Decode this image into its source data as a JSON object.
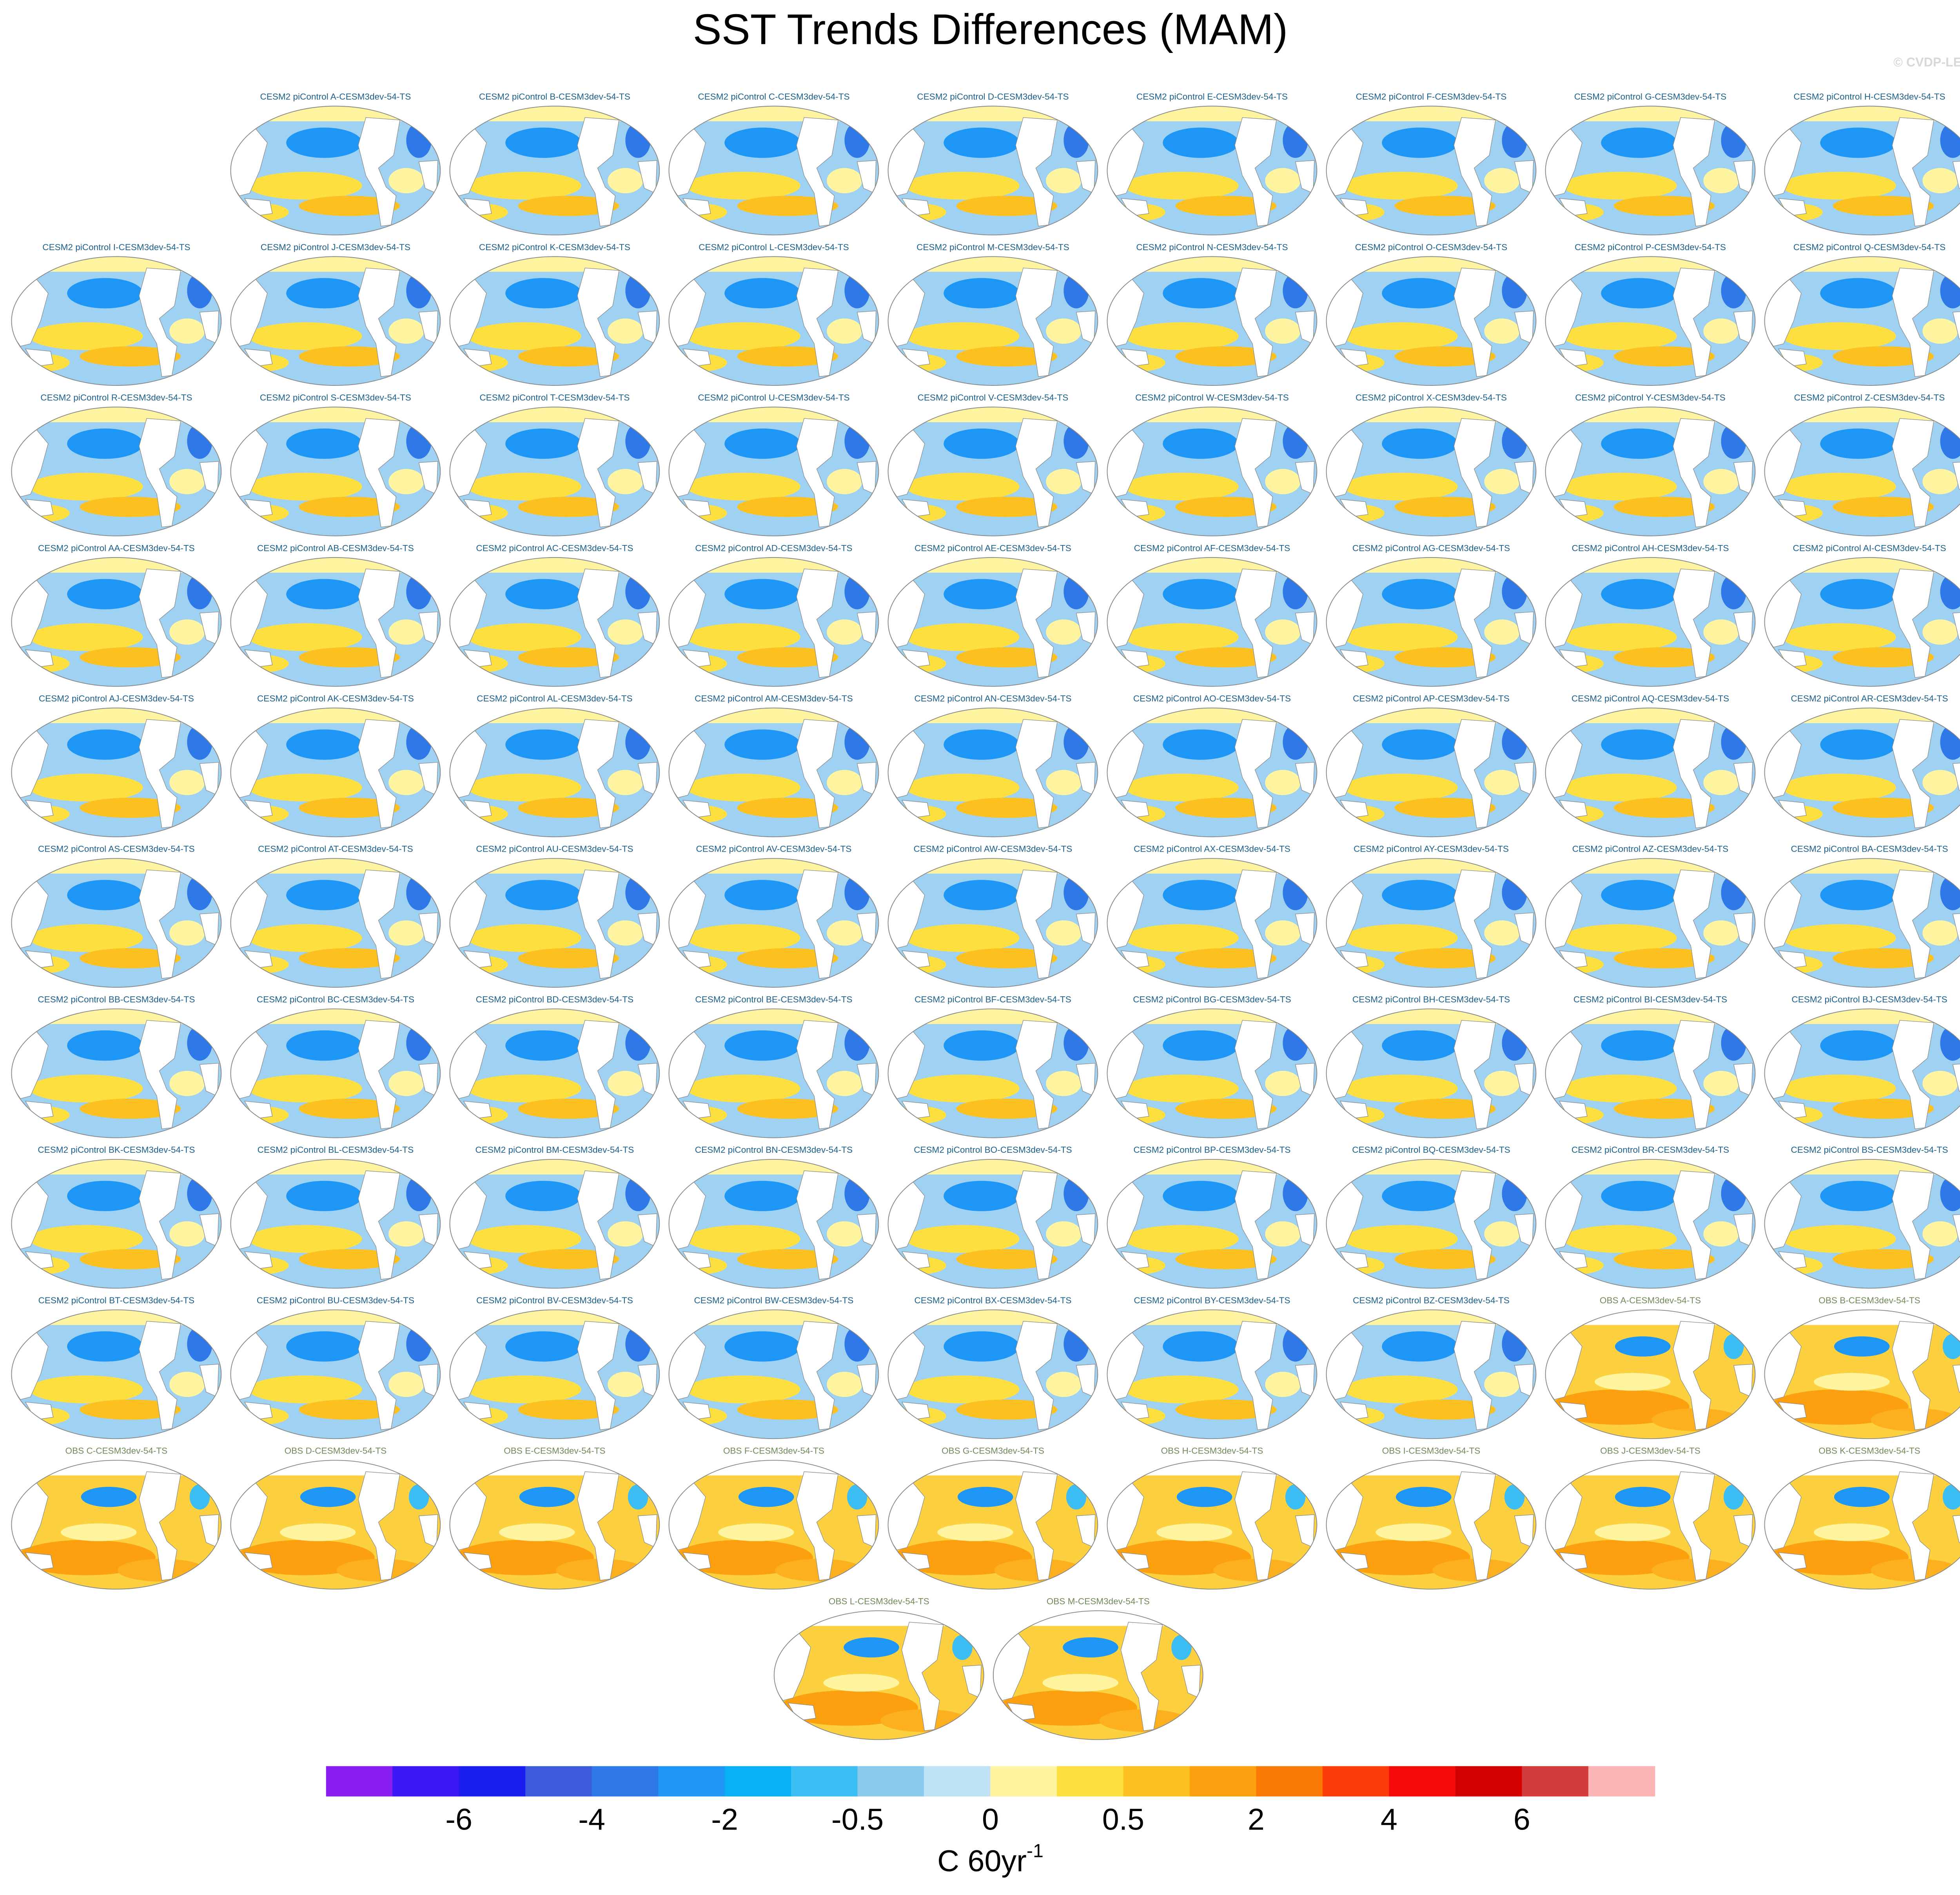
{
  "title": "SST Trends Differences (MAM)",
  "watermark": "© CVDP-LE",
  "model_panels": [
    "CESM2 piControl A-CESM3dev-54-TS",
    "CESM2 piControl B-CESM3dev-54-TS",
    "CESM2 piControl C-CESM3dev-54-TS",
    "CESM2 piControl D-CESM3dev-54-TS",
    "CESM2 piControl E-CESM3dev-54-TS",
    "CESM2 piControl F-CESM3dev-54-TS",
    "CESM2 piControl G-CESM3dev-54-TS",
    "CESM2 piControl H-CESM3dev-54-TS",
    "CESM2 piControl I-CESM3dev-54-TS",
    "CESM2 piControl J-CESM3dev-54-TS",
    "CESM2 piControl K-CESM3dev-54-TS",
    "CESM2 piControl L-CESM3dev-54-TS",
    "CESM2 piControl M-CESM3dev-54-TS",
    "CESM2 piControl N-CESM3dev-54-TS",
    "CESM2 piControl O-CESM3dev-54-TS",
    "CESM2 piControl P-CESM3dev-54-TS",
    "CESM2 piControl Q-CESM3dev-54-TS",
    "CESM2 piControl R-CESM3dev-54-TS",
    "CESM2 piControl S-CESM3dev-54-TS",
    "CESM2 piControl T-CESM3dev-54-TS",
    "CESM2 piControl U-CESM3dev-54-TS",
    "CESM2 piControl V-CESM3dev-54-TS",
    "CESM2 piControl W-CESM3dev-54-TS",
    "CESM2 piControl X-CESM3dev-54-TS",
    "CESM2 piControl Y-CESM3dev-54-TS",
    "CESM2 piControl Z-CESM3dev-54-TS",
    "CESM2 piControl AA-CESM3dev-54-TS",
    "CESM2 piControl AB-CESM3dev-54-TS",
    "CESM2 piControl AC-CESM3dev-54-TS",
    "CESM2 piControl AD-CESM3dev-54-TS",
    "CESM2 piControl AE-CESM3dev-54-TS",
    "CESM2 piControl AF-CESM3dev-54-TS",
    "CESM2 piControl AG-CESM3dev-54-TS",
    "CESM2 piControl AH-CESM3dev-54-TS",
    "CESM2 piControl AI-CESM3dev-54-TS",
    "CESM2 piControl AJ-CESM3dev-54-TS",
    "CESM2 piControl AK-CESM3dev-54-TS",
    "CESM2 piControl AL-CESM3dev-54-TS",
    "CESM2 piControl AM-CESM3dev-54-TS",
    "CESM2 piControl AN-CESM3dev-54-TS",
    "CESM2 piControl AO-CESM3dev-54-TS",
    "CESM2 piControl AP-CESM3dev-54-TS",
    "CESM2 piControl AQ-CESM3dev-54-TS",
    "CESM2 piControl AR-CESM3dev-54-TS",
    "CESM2 piControl AS-CESM3dev-54-TS",
    "CESM2 piControl AT-CESM3dev-54-TS",
    "CESM2 piControl AU-CESM3dev-54-TS",
    "CESM2 piControl AV-CESM3dev-54-TS",
    "CESM2 piControl AW-CESM3dev-54-TS",
    "CESM2 piControl AX-CESM3dev-54-TS",
    "CESM2 piControl AY-CESM3dev-54-TS",
    "CESM2 piControl AZ-CESM3dev-54-TS",
    "CESM2 piControl BA-CESM3dev-54-TS",
    "CESM2 piControl BB-CESM3dev-54-TS",
    "CESM2 piControl BC-CESM3dev-54-TS",
    "CESM2 piControl BD-CESM3dev-54-TS",
    "CESM2 piControl BE-CESM3dev-54-TS",
    "CESM2 piControl BF-CESM3dev-54-TS",
    "CESM2 piControl BG-CESM3dev-54-TS",
    "CESM2 piControl BH-CESM3dev-54-TS",
    "CESM2 piControl BI-CESM3dev-54-TS",
    "CESM2 piControl BJ-CESM3dev-54-TS",
    "CESM2 piControl BK-CESM3dev-54-TS",
    "CESM2 piControl BL-CESM3dev-54-TS",
    "CESM2 piControl BM-CESM3dev-54-TS",
    "CESM2 piControl BN-CESM3dev-54-TS",
    "CESM2 piControl BO-CESM3dev-54-TS",
    "CESM2 piControl BP-CESM3dev-54-TS",
    "CESM2 piControl BQ-CESM3dev-54-TS",
    "CESM2 piControl BR-CESM3dev-54-TS",
    "CESM2 piControl BS-CESM3dev-54-TS",
    "CESM2 piControl BT-CESM3dev-54-TS",
    "CESM2 piControl BU-CESM3dev-54-TS",
    "CESM2 piControl BV-CESM3dev-54-TS",
    "CESM2 piControl BW-CESM3dev-54-TS",
    "CESM2 piControl BX-CESM3dev-54-TS",
    "CESM2 piControl BY-CESM3dev-54-TS",
    "CESM2 piControl BZ-CESM3dev-54-TS"
  ],
  "obs_panels": [
    "OBS A-CESM3dev-54-TS",
    "OBS B-CESM3dev-54-TS",
    "OBS C-CESM3dev-54-TS",
    "OBS D-CESM3dev-54-TS",
    "OBS E-CESM3dev-54-TS",
    "OBS F-CESM3dev-54-TS",
    "OBS G-CESM3dev-54-TS",
    "OBS H-CESM3dev-54-TS",
    "OBS I-CESM3dev-54-TS",
    "OBS J-CESM3dev-54-TS",
    "OBS K-CESM3dev-54-TS",
    "OBS L-CESM3dev-54-TS",
    "OBS M-CESM3dev-54-TS"
  ],
  "colorbar": {
    "colors": [
      "#8a1ef0",
      "#3a18f5",
      "#1a1ef0",
      "#3c5cdc",
      "#2f78e8",
      "#1e96f5",
      "#0ab0f5",
      "#3cbef5",
      "#8ccaec",
      "#bfe2f5",
      "#fff5a0",
      "#fde040",
      "#fcc020",
      "#fca010",
      "#fa7a08",
      "#fa3c08",
      "#f50a0a",
      "#d20000",
      "#d23c3c",
      "#fcb4b4"
    ],
    "ticks": [
      -6,
      -4,
      -2,
      -0.5,
      0,
      0.5,
      2,
      4,
      6
    ],
    "label": "C 60yr",
    "label_superscript": "-1"
  }
}
